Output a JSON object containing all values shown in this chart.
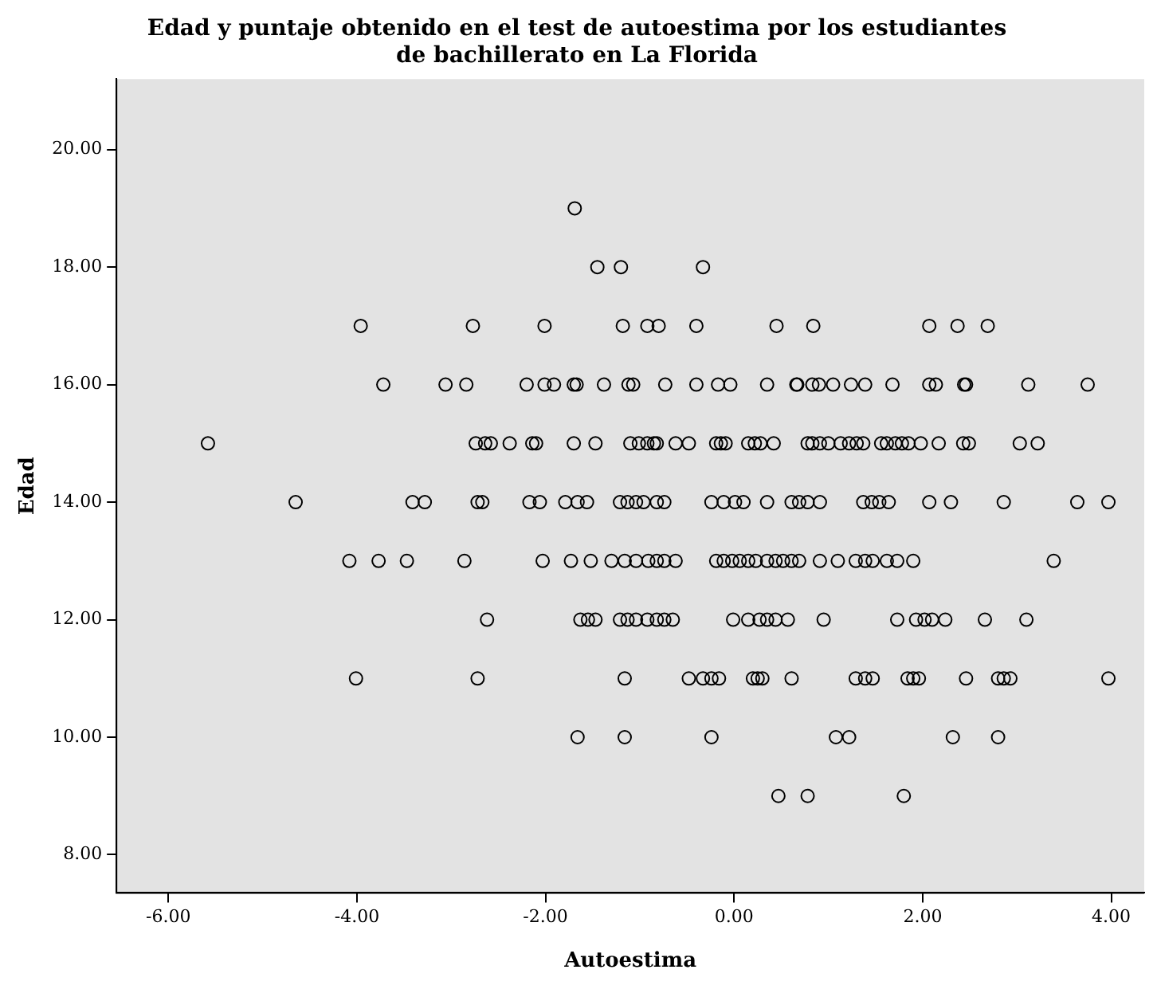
{
  "chart_data": {
    "type": "scatter",
    "title": "Edad y puntaje obtenido en el test de autoestima por los estudiantes\nde bachillerato en La Florida",
    "xlabel": "Autoestima",
    "ylabel": "Edad",
    "xlim": [
      -6.55,
      4.35
    ],
    "ylim": [
      7.35,
      21.2
    ],
    "xticks": [
      {
        "value": -6,
        "label": "-6.00"
      },
      {
        "value": -4,
        "label": "-4.00"
      },
      {
        "value": -2,
        "label": "-2.00"
      },
      {
        "value": 0,
        "label": "0.00"
      },
      {
        "value": 2,
        "label": "2.00"
      },
      {
        "value": 4,
        "label": "4.00"
      }
    ],
    "yticks": [
      {
        "value": 8,
        "label": "8.00"
      },
      {
        "value": 10,
        "label": "10.00"
      },
      {
        "value": 12,
        "label": "12.00"
      },
      {
        "value": 14,
        "label": "14.00"
      },
      {
        "value": 16,
        "label": "16.00"
      },
      {
        "value": 18,
        "label": "18.00"
      },
      {
        "value": 20,
        "label": "20.00"
      }
    ],
    "grid": false,
    "legend": false,
    "marker": "circle",
    "series": [
      {
        "color": "#000000",
        "x": [
          -1.69,
          -1.45,
          -1.2,
          -0.33,
          -3.96,
          -2.77,
          -2.01,
          -1.18,
          -0.92,
          -0.8,
          -0.4,
          0.45,
          0.84,
          2.07,
          2.37,
          2.69,
          -3.72,
          -3.06,
          -2.84,
          -2.2,
          -2.01,
          -1.91,
          -1.7,
          -1.67,
          -1.38,
          -1.12,
          -1.07,
          -0.73,
          -0.4,
          -0.17,
          -0.04,
          0.35,
          0.66,
          0.67,
          0.83,
          0.9,
          1.05,
          1.24,
          1.39,
          1.68,
          2.07,
          2.14,
          2.44,
          2.46,
          3.12,
          3.75,
          -5.58,
          -2.74,
          -2.64,
          -2.58,
          -2.38,
          -2.14,
          -2.1,
          -1.7,
          -1.47,
          -1.1,
          -1.01,
          -0.92,
          -0.85,
          -0.82,
          -0.62,
          -0.48,
          -0.19,
          -0.14,
          -0.09,
          0.15,
          0.22,
          0.28,
          0.42,
          0.78,
          0.83,
          0.91,
          1.0,
          1.13,
          1.22,
          1.3,
          1.37,
          1.56,
          1.62,
          1.71,
          1.78,
          1.85,
          1.98,
          2.17,
          2.43,
          2.49,
          3.03,
          3.22,
          -4.65,
          -3.41,
          -3.28,
          -2.72,
          -2.67,
          -2.17,
          -2.06,
          -1.79,
          -1.66,
          -1.56,
          -1.21,
          -1.13,
          -1.04,
          -0.96,
          -0.82,
          -0.74,
          -0.24,
          -0.11,
          0.01,
          0.1,
          0.35,
          0.61,
          0.69,
          0.78,
          0.91,
          1.37,
          1.46,
          1.54,
          1.64,
          2.07,
          2.3,
          2.86,
          3.64,
          3.97,
          -4.08,
          -3.77,
          -3.47,
          -2.86,
          -2.03,
          -1.73,
          -1.52,
          -1.3,
          -1.16,
          -1.04,
          -0.91,
          -0.82,
          -0.74,
          -0.62,
          -0.19,
          -0.11,
          -0.02,
          0.06,
          0.15,
          0.23,
          0.35,
          0.44,
          0.52,
          0.61,
          0.69,
          0.91,
          1.1,
          1.29,
          1.39,
          1.47,
          1.62,
          1.73,
          1.9,
          3.39,
          -2.62,
          -1.63,
          -1.55,
          -1.47,
          -1.21,
          -1.13,
          -1.04,
          -0.92,
          -0.82,
          -0.74,
          -0.65,
          -0.01,
          0.15,
          0.27,
          0.35,
          0.44,
          0.57,
          0.95,
          1.73,
          1.93,
          2.02,
          2.1,
          2.24,
          2.66,
          3.1,
          -4.01,
          -2.72,
          -1.16,
          -0.48,
          -0.33,
          -0.24,
          -0.16,
          0.2,
          0.25,
          0.3,
          0.61,
          1.29,
          1.39,
          1.47,
          1.84,
          1.9,
          1.96,
          2.46,
          2.8,
          2.86,
          2.93,
          3.97,
          -1.66,
          -1.16,
          -0.24,
          1.08,
          1.22,
          2.32,
          2.8,
          0.47,
          0.78,
          1.8
        ],
        "values": [
          19,
          18,
          18,
          18,
          17,
          17,
          17,
          17,
          17,
          17,
          17,
          17,
          17,
          17,
          17,
          17,
          16,
          16,
          16,
          16,
          16,
          16,
          16,
          16,
          16,
          16,
          16,
          16,
          16,
          16,
          16,
          16,
          16,
          16,
          16,
          16,
          16,
          16,
          16,
          16,
          16,
          16,
          16,
          16,
          16,
          16,
          15,
          15,
          15,
          15,
          15,
          15,
          15,
          15,
          15,
          15,
          15,
          15,
          15,
          15,
          15,
          15,
          15,
          15,
          15,
          15,
          15,
          15,
          15,
          15,
          15,
          15,
          15,
          15,
          15,
          15,
          15,
          15,
          15,
          15,
          15,
          15,
          15,
          15,
          15,
          15,
          15,
          15,
          14,
          14,
          14,
          14,
          14,
          14,
          14,
          14,
          14,
          14,
          14,
          14,
          14,
          14,
          14,
          14,
          14,
          14,
          14,
          14,
          14,
          14,
          14,
          14,
          14,
          14,
          14,
          14,
          14,
          14,
          14,
          14,
          14,
          14,
          13,
          13,
          13,
          13,
          13,
          13,
          13,
          13,
          13,
          13,
          13,
          13,
          13,
          13,
          13,
          13,
          13,
          13,
          13,
          13,
          13,
          13,
          13,
          13,
          13,
          13,
          13,
          13,
          13,
          13,
          13,
          13,
          13,
          13,
          12,
          12,
          12,
          12,
          12,
          12,
          12,
          12,
          12,
          12,
          12,
          12,
          12,
          12,
          12,
          12,
          12,
          12,
          12,
          12,
          12,
          12,
          12,
          12,
          12,
          11,
          11,
          11,
          11,
          11,
          11,
          11,
          11,
          11,
          11,
          11,
          11,
          11,
          11,
          11,
          11,
          11,
          11,
          11,
          11,
          11,
          11,
          10,
          10,
          10,
          10,
          10,
          10,
          10,
          9,
          9,
          9
        ]
      }
    ]
  }
}
